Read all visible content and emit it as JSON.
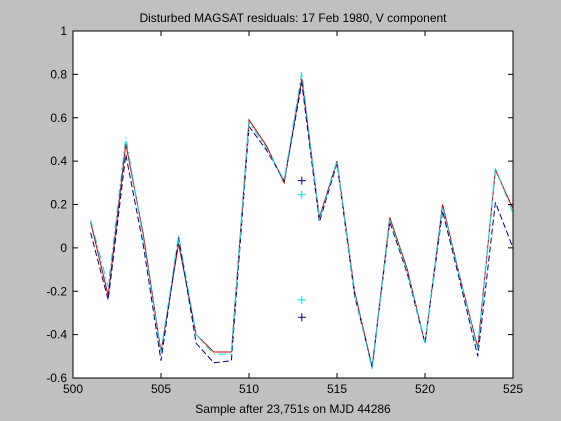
{
  "chart_data": {
    "type": "line",
    "title": "Disturbed MAGSAT residuals: 17 Feb 1980, V component",
    "xlabel": "Sample after 23,751s on MJD 44286",
    "ylabel": "",
    "xlim": [
      500,
      525
    ],
    "ylim": [
      -0.6,
      1
    ],
    "x_ticks": [
      500,
      505,
      510,
      515,
      520,
      525
    ],
    "y_ticks": [
      -0.6,
      -0.4,
      -0.2,
      0,
      0.2,
      0.4,
      0.6,
      0.8,
      1
    ],
    "x_tick_labels": [
      "500",
      "505",
      "510",
      "515",
      "520",
      "525"
    ],
    "y_tick_labels": [
      "-0.6",
      "-0.4",
      "-0.2",
      "0",
      "0.2",
      "0.4",
      "0.6",
      "0.8",
      "1"
    ],
    "grid": false,
    "legend": "none",
    "x": [
      501,
      502,
      503,
      504,
      505,
      506,
      507,
      508,
      509,
      510,
      511,
      512,
      513,
      514,
      515,
      516,
      517,
      518,
      519,
      520,
      521,
      522,
      523,
      524,
      525
    ],
    "series": [
      {
        "color": "#cc0000",
        "style": "solid",
        "values": [
          0.12,
          -0.22,
          0.48,
          0.06,
          -0.48,
          0.02,
          -0.4,
          -0.48,
          -0.48,
          0.59,
          0.47,
          0.3,
          0.78,
          0.14,
          0.4,
          -0.2,
          -0.55,
          0.14,
          -0.1,
          -0.44,
          0.2,
          -0.14,
          -0.46,
          0.36,
          0.18
        ]
      },
      {
        "color": "#000080",
        "style": "dashed",
        "values": [
          0.07,
          -0.24,
          0.43,
          0.01,
          -0.52,
          0.05,
          -0.44,
          -0.53,
          -0.52,
          0.56,
          0.45,
          0.31,
          0.76,
          0.12,
          0.39,
          -0.22,
          -0.55,
          0.12,
          -0.12,
          -0.44,
          0.17,
          -0.16,
          -0.5,
          0.21,
          0.0
        ]
      },
      {
        "color": "#00e0e0",
        "style": "dashdot",
        "values": [
          0.13,
          -0.18,
          0.51,
          0.04,
          -0.48,
          0.06,
          -0.4,
          -0.49,
          -0.49,
          0.58,
          0.46,
          0.31,
          0.81,
          0.13,
          0.4,
          -0.21,
          -0.56,
          0.13,
          -0.11,
          -0.44,
          0.19,
          -0.14,
          -0.47,
          0.37,
          0.16
        ]
      }
    ],
    "markers": [
      {
        "x": 513,
        "y": 0.31,
        "color": "#000080",
        "symbol": "+"
      },
      {
        "x": 513,
        "y": -0.32,
        "color": "#000080",
        "symbol": "+"
      },
      {
        "x": 513,
        "y": 0.245,
        "color": "#00e0e0",
        "symbol": "+"
      },
      {
        "x": 513,
        "y": -0.24,
        "color": "#00e0e0",
        "symbol": "+"
      }
    ]
  }
}
